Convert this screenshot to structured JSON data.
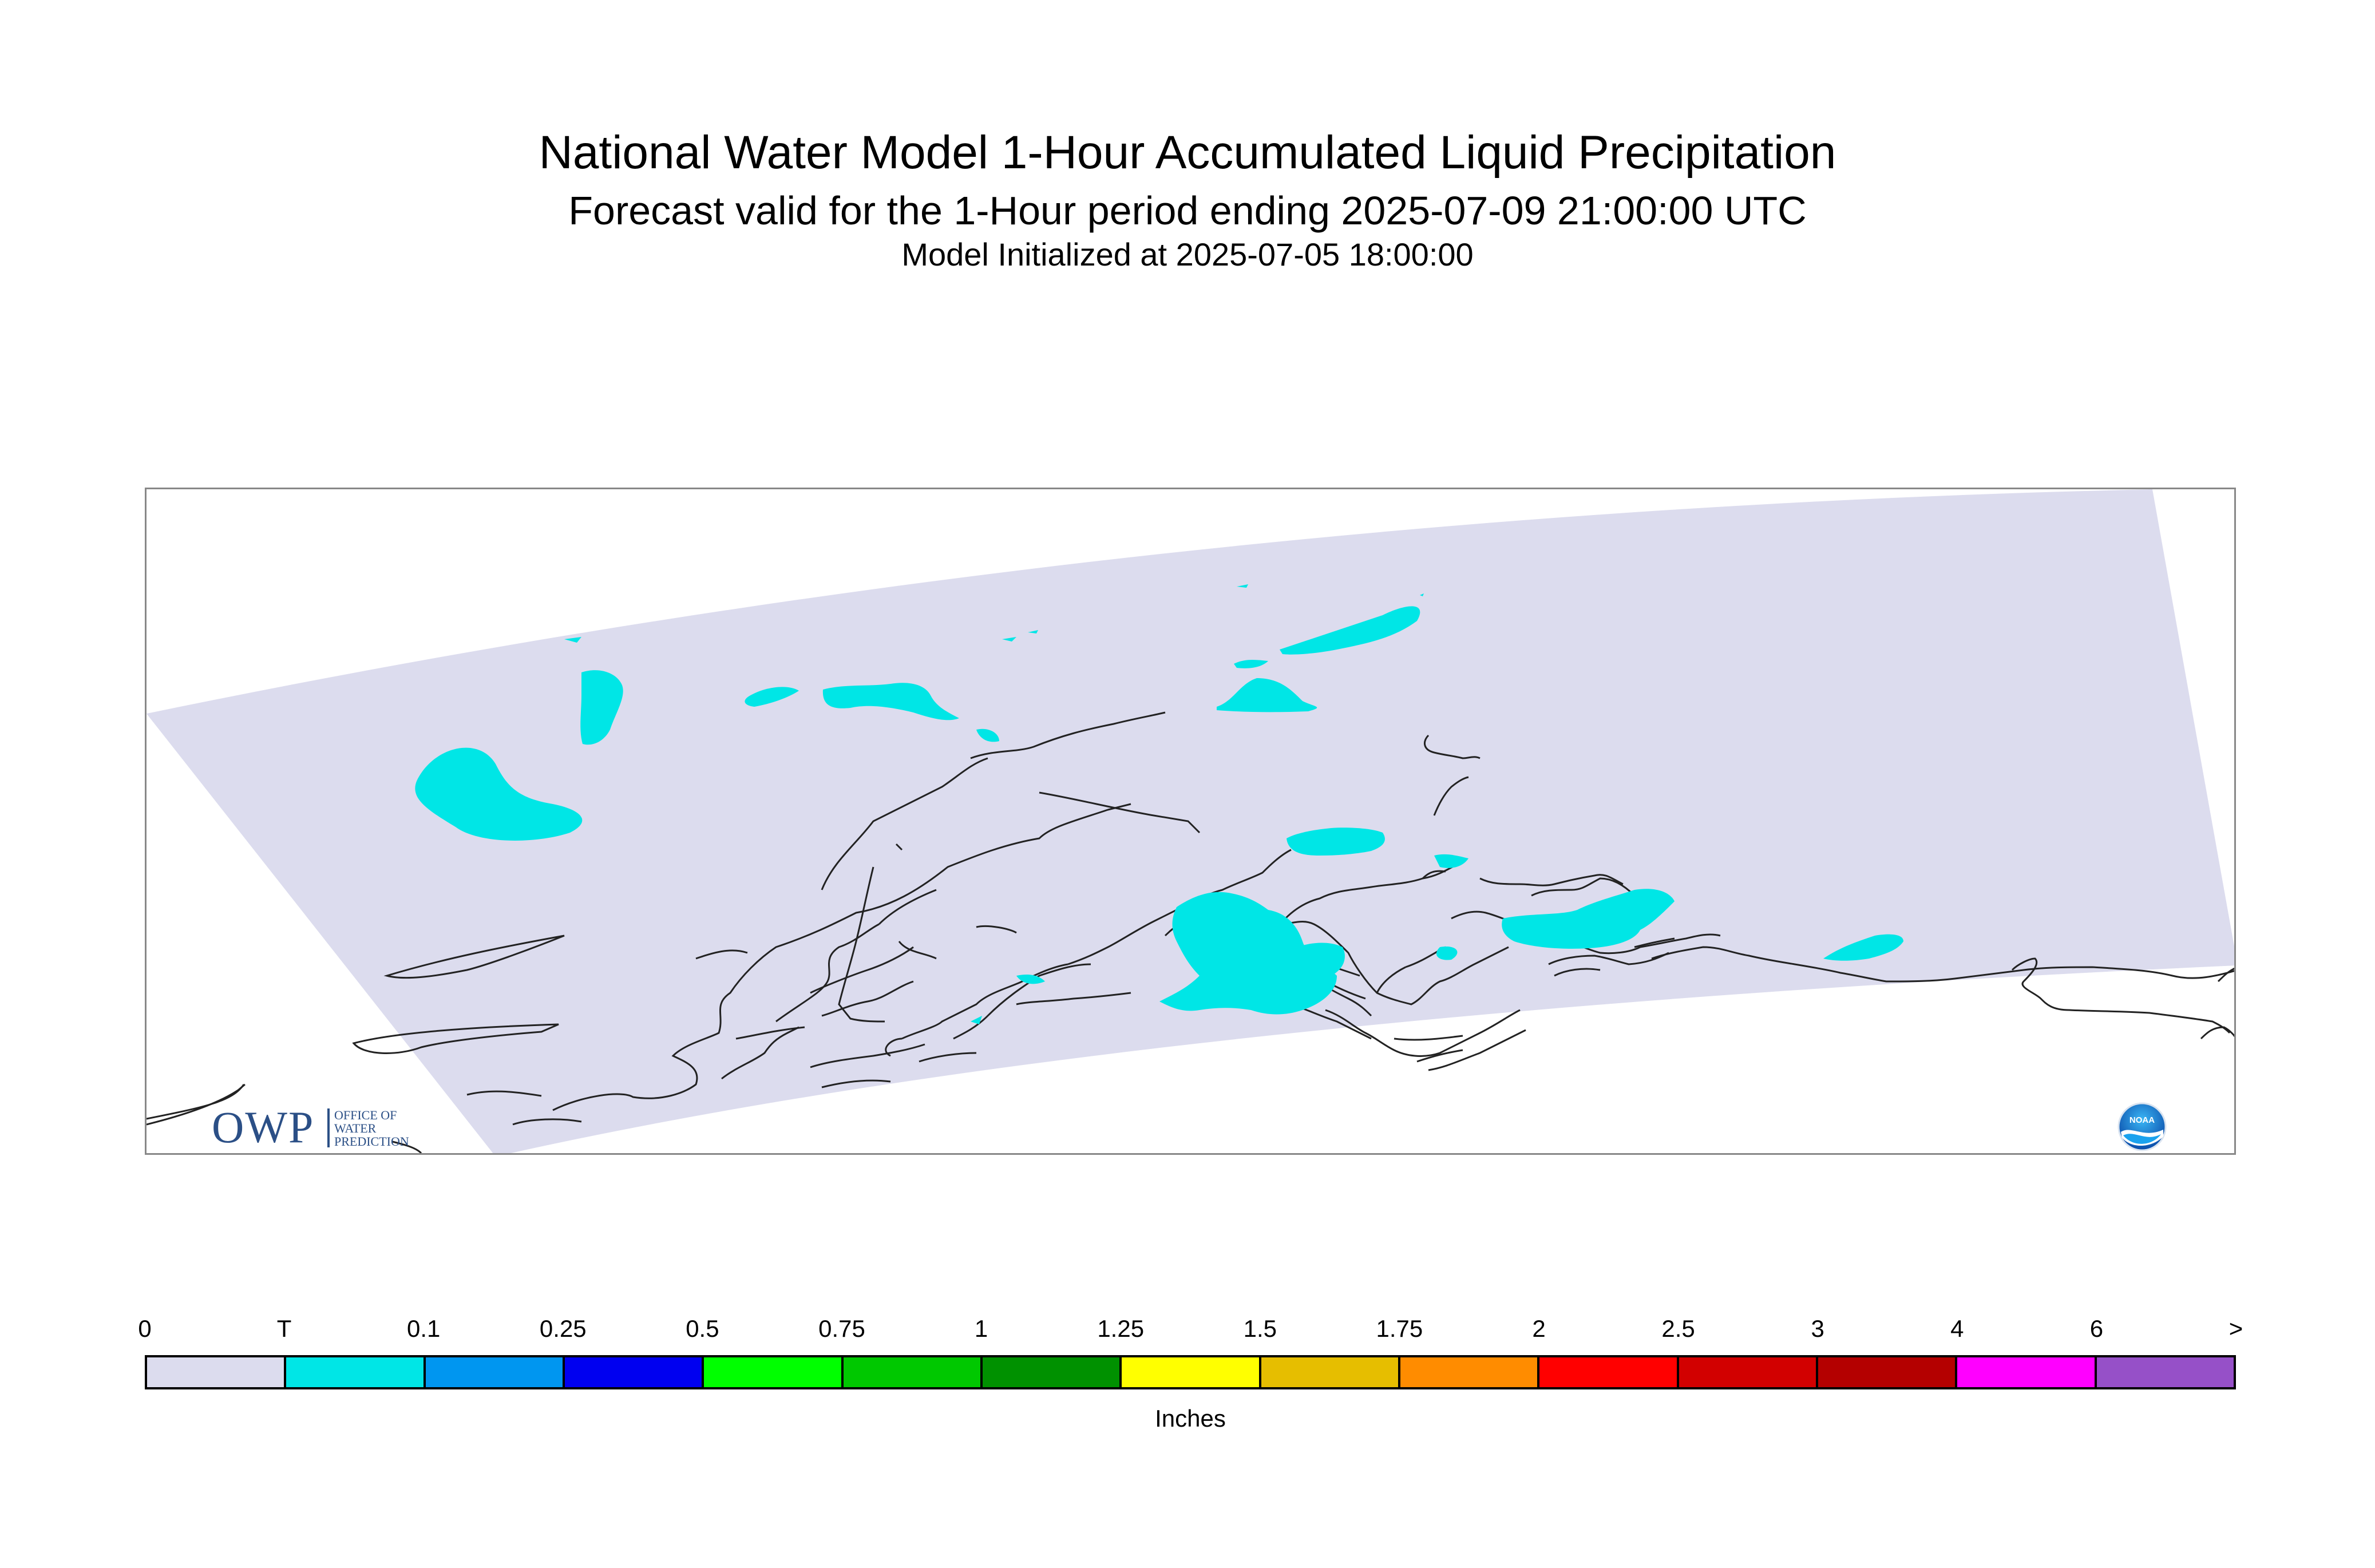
{
  "title": {
    "main": "National Water Model 1-Hour Accumulated Liquid Precipitation",
    "sub": "Forecast valid for the 1-Hour period ending 2025-07-09 21:00:00 UTC",
    "init": "Model Initialized at 2025-07-05 18:00:00"
  },
  "logos": {
    "owp": {
      "text": "OWP",
      "subtitle": [
        "OFFICE OF",
        "WATER",
        "PREDICTION"
      ]
    },
    "noaa": {
      "text": "NOAA"
    }
  },
  "map": {
    "domain_color": "#dcdcee",
    "precip_color": "#00e6e6",
    "coastline_color": "#222222"
  },
  "legend": {
    "units": "Inches",
    "ticks": [
      "0",
      "T",
      "0.1",
      "0.25",
      "0.5",
      "0.75",
      "1",
      "1.25",
      "1.5",
      "1.75",
      "2",
      "2.5",
      "3",
      "4",
      "6",
      ">"
    ],
    "colors": [
      "#dcdcee",
      "#00e6e6",
      "#0096f0",
      "#0000f0",
      "#00ff00",
      "#00c800",
      "#009100",
      "#ffff00",
      "#e6be00",
      "#ff8c00",
      "#ff0000",
      "#d20000",
      "#b40000",
      "#ff00ff",
      "#9650c8"
    ]
  }
}
